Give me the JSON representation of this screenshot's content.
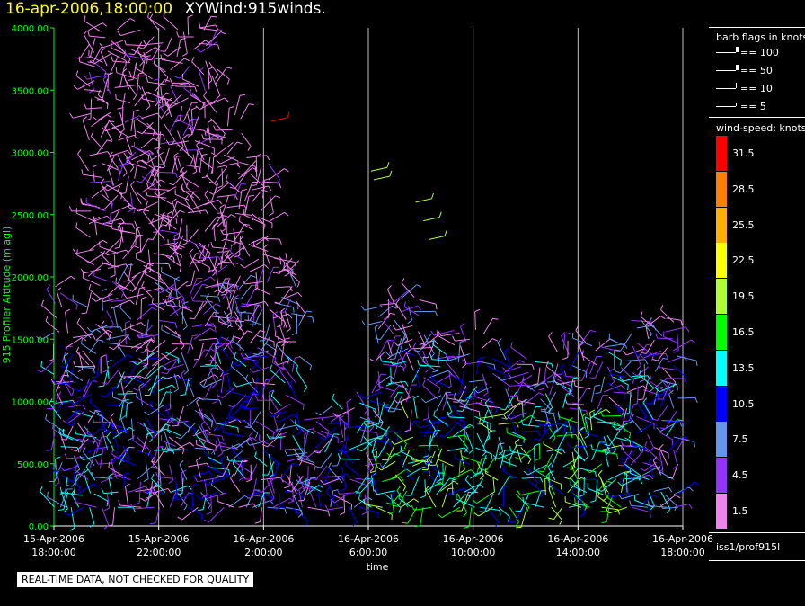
{
  "title": {
    "date": "16-apr-2006,18:00:00",
    "name": "XYWind:915winds."
  },
  "notice": "REAL-TIME DATA, NOT CHECKED FOR QUALITY",
  "source_label": "iss1/prof915l",
  "legend": {
    "barb_title": "barb flags in knots",
    "barbs": [
      {
        "label": "== 100",
        "kind": "flag"
      },
      {
        "label": "== 50",
        "kind": "flag"
      },
      {
        "label": "== 10",
        "kind": "full"
      },
      {
        "label": "== 5",
        "kind": "half"
      }
    ],
    "speed_title": "wind-speed: knots",
    "speeds": [
      {
        "label": "31.5",
        "color": "#ff0000"
      },
      {
        "label": "28.5",
        "color": "#ff7f00"
      },
      {
        "label": "25.5",
        "color": "#ffaf00"
      },
      {
        "label": "22.5",
        "color": "#ffff00"
      },
      {
        "label": "19.5",
        "color": "#afff30"
      },
      {
        "label": "16.5",
        "color": "#00ff00"
      },
      {
        "label": "13.5",
        "color": "#00ffff"
      },
      {
        "label": "10.5",
        "color": "#0000ff"
      },
      {
        "label": "7.5",
        "color": "#6496f0"
      },
      {
        "label": "4.5",
        "color": "#9632ff"
      },
      {
        "label": "1.5",
        "color": "#ee82ee"
      }
    ]
  },
  "chart_data": {
    "type": "scatter",
    "xlabel": "time",
    "ylabel": "915 Profiler Altitude (m agl)",
    "ylim": [
      0,
      4000
    ],
    "y_ticks": [
      "0.00",
      "500.00",
      "1000.00",
      "1500.00",
      "2000.00",
      "2500.00",
      "3000.00",
      "3500.00",
      "4000.00"
    ],
    "x_ticks": [
      {
        "date": "15-Apr-2006",
        "time": "18:00:00",
        "hours": 0
      },
      {
        "date": "15-Apr-2006",
        "time": "22:00:00",
        "hours": 4
      },
      {
        "date": "16-Apr-2006",
        "time": "2:00:00",
        "hours": 8
      },
      {
        "date": "16-Apr-2006",
        "time": "6:00:00",
        "hours": 12
      },
      {
        "date": "16-Apr-2006",
        "time": "10:00:00",
        "hours": 16
      },
      {
        "date": "16-Apr-2006",
        "time": "14:00:00",
        "hours": 20
      },
      {
        "date": "16-Apr-2006",
        "time": "18:00:00",
        "hours": 24
      }
    ],
    "xlim_hours": [
      0,
      24
    ],
    "grid": "vertical",
    "colors": {
      "axis": "#00ff00",
      "grid": "#ffffff",
      "ylabel": "#00ff00"
    }
  }
}
